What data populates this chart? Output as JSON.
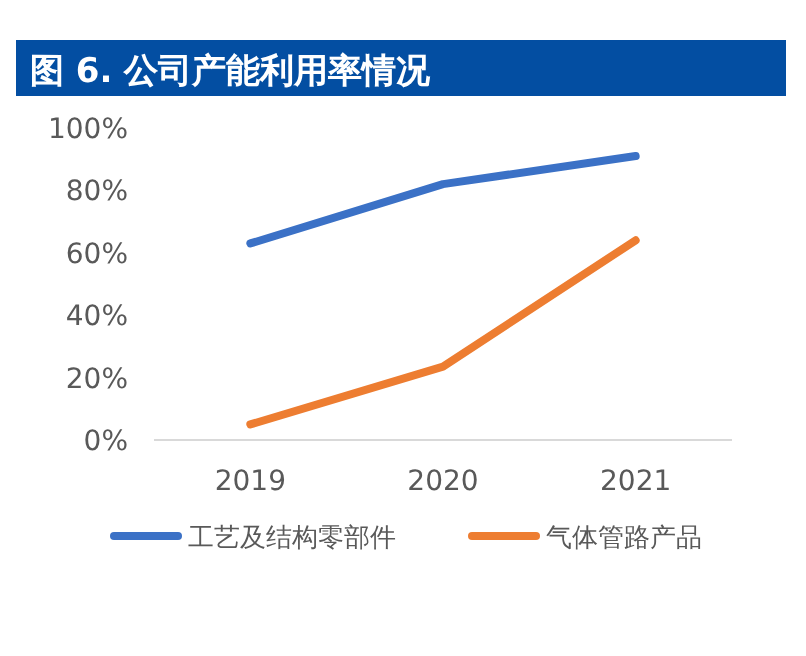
{
  "chart_data": {
    "type": "line",
    "title": "图 6. 公司产能利用率情况",
    "categories": [
      "2019",
      "2020",
      "2021"
    ],
    "series": [
      {
        "name": "工艺及结构零部件",
        "color": "#3b71c6",
        "values": [
          63,
          82,
          91
        ]
      },
      {
        "name": "气体管路产品",
        "color": "#ed7d31",
        "values": [
          5,
          23.5,
          64
        ]
      }
    ],
    "ylim": [
      0,
      100
    ],
    "yticks": [
      {
        "value": 0,
        "label": "0%"
      },
      {
        "value": 20,
        "label": "20%"
      },
      {
        "value": 40,
        "label": "40%"
      },
      {
        "value": 60,
        "label": "60%"
      },
      {
        "value": 80,
        "label": "80%"
      },
      {
        "value": 100,
        "label": "100%"
      }
    ],
    "legend": "bottom",
    "line_style": "solid"
  }
}
